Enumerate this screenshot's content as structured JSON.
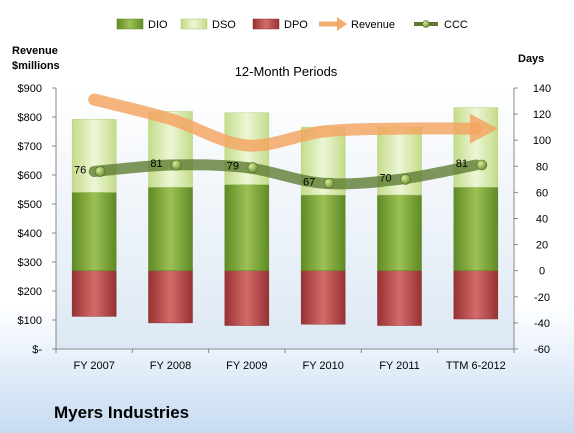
{
  "company": "Myers Industries",
  "chart_data": {
    "type": "bar",
    "title": "12-Month Periods",
    "ylabel_left_line1": "Revenue",
    "ylabel_left_line2": "$millions",
    "ylabel_right": "Days",
    "categories": [
      "FY 2007",
      "FY 2008",
      "FY 2009",
      "FY 2010",
      "FY 2011",
      "TTM 6-2012"
    ],
    "left_axis": {
      "ticks": [
        0,
        100,
        200,
        300,
        400,
        500,
        600,
        700,
        800,
        900
      ],
      "tick_labels": [
        "$-",
        "$100",
        "$200",
        "$300",
        "$400",
        "$500",
        "$600",
        "$700",
        "$800",
        "$900"
      ],
      "range": [
        0,
        900
      ]
    },
    "right_axis": {
      "ticks": [
        -60,
        -40,
        -20,
        0,
        20,
        40,
        60,
        80,
        100,
        120,
        140
      ],
      "tick_labels": [
        "-60",
        "-40",
        "-20",
        "0",
        "20",
        "40",
        "60",
        "80",
        "100",
        "120",
        "140"
      ],
      "range": [
        -60,
        140
      ]
    },
    "series": [
      {
        "name": "DIO",
        "axis": "right",
        "stack_base": 0,
        "values": [
          60,
          64,
          66,
          58,
          58,
          64
        ],
        "color": "#7fa63b"
      },
      {
        "name": "DSO",
        "axis": "right",
        "stack_on": "DIO",
        "values": [
          56,
          58,
          55,
          52,
          52,
          61
        ],
        "color": "#d7e8a7"
      },
      {
        "name": "DPO",
        "axis": "right",
        "stack_base": 0,
        "values": [
          -35,
          -40,
          -42,
          -41,
          -42,
          -37
        ],
        "color": "#b64a4a"
      },
      {
        "name": "Revenue",
        "axis": "left",
        "values": [
          860,
          793,
          702,
          750,
          760,
          760
        ],
        "color": "#f4a460"
      },
      {
        "name": "CCC",
        "axis": "right",
        "values": [
          76,
          81,
          79,
          67,
          70,
          81
        ],
        "color": "#5b7a30"
      }
    ],
    "data_labels": [
      "76",
      "81",
      "79",
      "67",
      "70",
      "81"
    ],
    "legend": {
      "placement": "top",
      "entries": [
        "DIO",
        "DSO",
        "DPO",
        "Revenue",
        "CCC"
      ]
    },
    "grid": false
  }
}
